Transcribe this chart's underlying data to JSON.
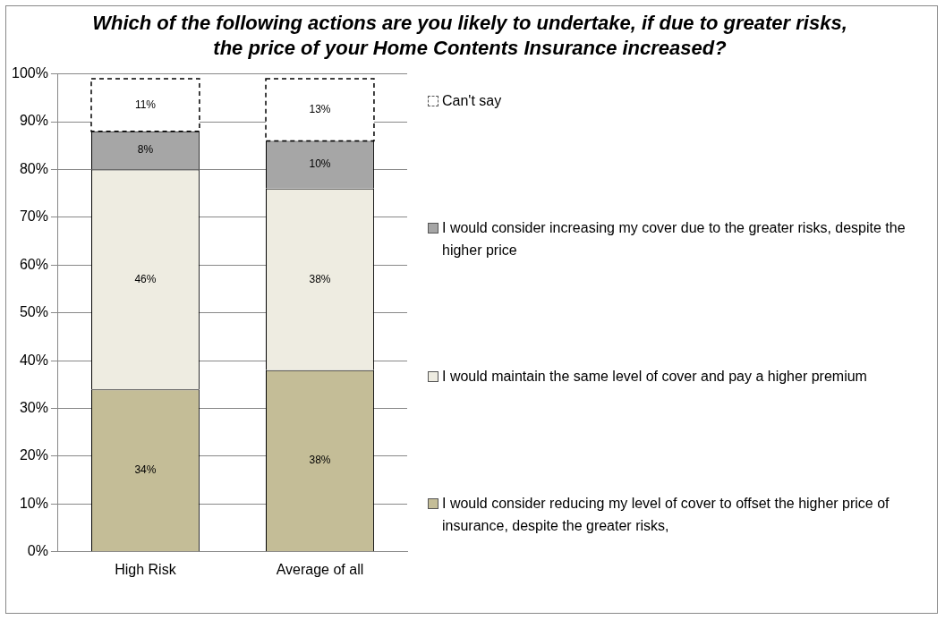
{
  "chart_data": {
    "type": "bar",
    "title": "Which of the following actions are you likely to undertake, if due to greater risks, the price of your Home Contents Insurance increased?",
    "categories": [
      "High Risk",
      "Average of all"
    ],
    "stacked": true,
    "series": [
      {
        "name": "I would consider reducing my level of cover to offset the higher price of insurance, despite the greater risks,",
        "color": "#c4bd97",
        "values": [
          34,
          38
        ],
        "value_labels": [
          "34%",
          "38%"
        ]
      },
      {
        "name": "I would maintain the same level of cover and pay a higher premium",
        "color": "#eeece1",
        "values": [
          46,
          38
        ],
        "value_labels": [
          "46%",
          "38%"
        ]
      },
      {
        "name": "I would consider increasing my cover due to the greater risks, despite the higher price",
        "color": "#a6a6a6",
        "values": [
          8,
          10
        ],
        "value_labels": [
          "8%",
          "10%"
        ]
      },
      {
        "name": "Can't say",
        "color": "#ffffff",
        "values": [
          11,
          13
        ],
        "value_labels": [
          "11%",
          "13%"
        ],
        "line_style": "dashed"
      }
    ],
    "ylim": [
      0,
      100
    ],
    "yticks": [
      {
        "value": 0,
        "label": "0%"
      },
      {
        "value": 10,
        "label": "10%"
      },
      {
        "value": 20,
        "label": "20%"
      },
      {
        "value": 30,
        "label": "30%"
      },
      {
        "value": 40,
        "label": "40%"
      },
      {
        "value": 50,
        "label": "50%"
      },
      {
        "value": 60,
        "label": "60%"
      },
      {
        "value": 70,
        "label": "70%"
      },
      {
        "value": 80,
        "label": "80%"
      },
      {
        "value": 90,
        "label": "90%"
      },
      {
        "value": 100,
        "label": "100%"
      }
    ],
    "grid": "y",
    "legend": "right"
  }
}
